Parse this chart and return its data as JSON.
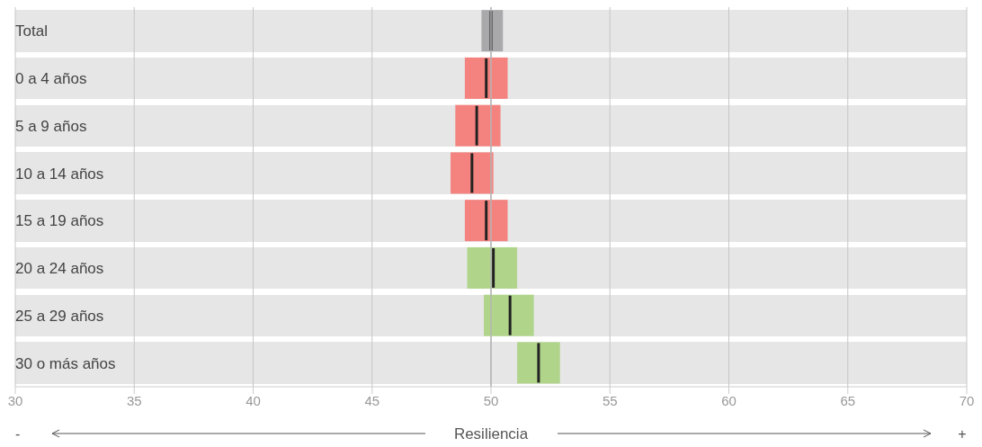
{
  "chart_data": {
    "type": "box",
    "orientation": "horizontal",
    "xlabel": "Resiliencia",
    "categories": [
      "Total",
      "0 a 4 años",
      "5 a 9 años",
      "10 a 14 años",
      "15 a 19 años",
      "20 a 24 años",
      "25 a 29 años",
      "30 o más años"
    ],
    "colors": [
      "#a9a9ab",
      "#f4837f",
      "#f4837f",
      "#f4837f",
      "#f4837f",
      "#b0d58a",
      "#b0d58a",
      "#b0d58a"
    ],
    "boxes": [
      {
        "low": 49.6,
        "q1": 49.6,
        "median": 50.0,
        "q3": 50.5,
        "high": 50.5
      },
      {
        "low": 48.9,
        "q1": 48.9,
        "median": 49.8,
        "q3": 50.7,
        "high": 50.7
      },
      {
        "low": 48.5,
        "q1": 48.5,
        "median": 49.4,
        "q3": 50.4,
        "high": 50.4
      },
      {
        "low": 48.3,
        "q1": 48.3,
        "median": 49.2,
        "q3": 50.1,
        "high": 50.1
      },
      {
        "low": 48.9,
        "q1": 48.9,
        "median": 49.8,
        "q3": 50.7,
        "high": 50.7
      },
      {
        "low": 49.0,
        "q1": 49.0,
        "median": 50.1,
        "q3": 51.1,
        "high": 51.1
      },
      {
        "low": 49.7,
        "q1": 49.7,
        "median": 50.8,
        "q3": 51.8,
        "high": 51.8
      },
      {
        "low": 51.1,
        "q1": 51.1,
        "median": 52.0,
        "q3": 52.9,
        "high": 52.9
      }
    ],
    "xlim": [
      30,
      70
    ],
    "xticks": [
      30,
      35,
      40,
      45,
      50,
      55,
      60,
      65,
      70
    ],
    "grid": "x",
    "ref_lines": [
      {
        "axis": "x",
        "value": 50,
        "color": "#b4b4b4"
      }
    ],
    "annotations": [
      "-",
      "+"
    ],
    "legend": false
  }
}
